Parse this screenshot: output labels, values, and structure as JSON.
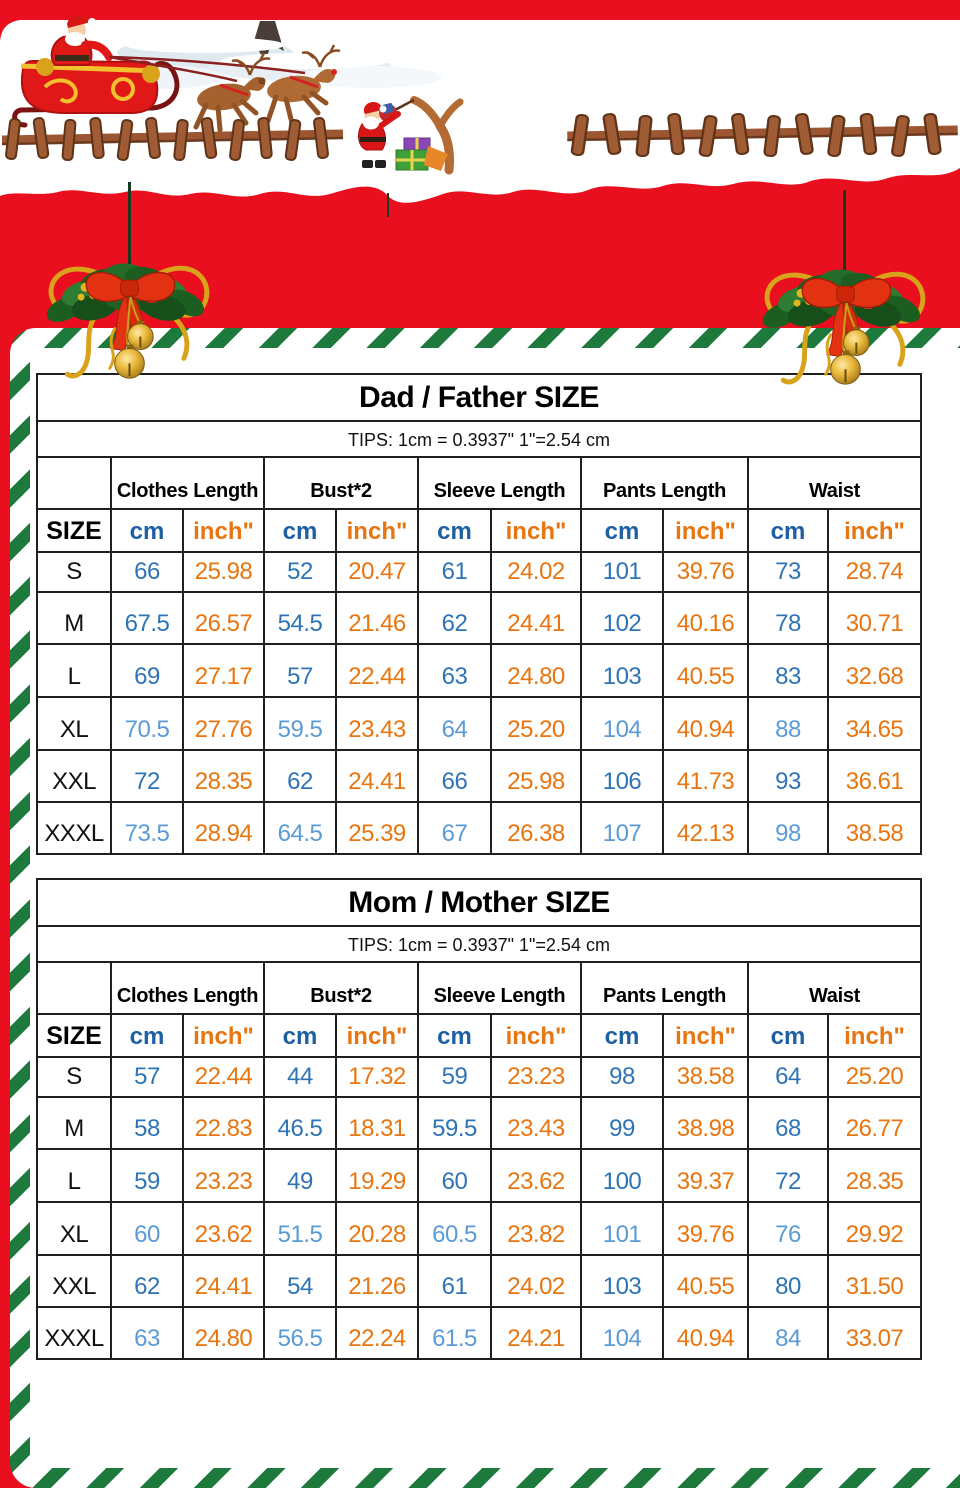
{
  "page": {
    "background_red": "#e90f1e",
    "stripe_green": "#1d7a3c",
    "table_border_color": "#1f1f1f",
    "cm_value_color": "#2e74b5",
    "cm_value_color_light": "#5b9bd5",
    "inch_value_color": "#e8750f",
    "cm_header_color": "#1f5fa3",
    "inch_header_color": "#e8750f"
  },
  "decorations": {
    "top_scene": [
      "santa-sleigh-illustration",
      "snowy-branch-illustration",
      "wooden-fence-illustration",
      "slingshot-santa-illustration"
    ],
    "hanging": [
      "christmas-garland-with-bow-and-bells-left",
      "christmas-garland-with-bow-and-bells-right"
    ]
  },
  "tables": [
    {
      "title": "Dad / Father  SIZE",
      "tips": "TIPS: 1cm = 0.3937\"    1\"=2.54 cm",
      "size_header": "SIZE",
      "unit_headers": {
        "cm": "cm",
        "inch": "inch\""
      },
      "groups": [
        "Clothes Length",
        "Bust*2",
        "Sleeve Length",
        "Pants Length",
        "Waist"
      ],
      "rows": [
        {
          "size": "S",
          "shade": "dark",
          "values": [
            "66",
            "25.98",
            "52",
            "20.47",
            "61",
            "24.02",
            "101",
            "39.76",
            "73",
            "28.74"
          ]
        },
        {
          "size": "M",
          "shade": "dark",
          "values": [
            "67.5",
            "26.57",
            "54.5",
            "21.46",
            "62",
            "24.41",
            "102",
            "40.16",
            "78",
            "30.71"
          ]
        },
        {
          "size": "L",
          "shade": "dark",
          "values": [
            "69",
            "27.17",
            "57",
            "22.44",
            "63",
            "24.80",
            "103",
            "40.55",
            "83",
            "32.68"
          ]
        },
        {
          "size": "XL",
          "shade": "light",
          "values": [
            "70.5",
            "27.76",
            "59.5",
            "23.43",
            "64",
            "25.20",
            "104",
            "40.94",
            "88",
            "34.65"
          ]
        },
        {
          "size": "XXL",
          "shade": "dark",
          "values": [
            "72",
            "28.35",
            "62",
            "24.41",
            "66",
            "25.98",
            "106",
            "41.73",
            "93",
            "36.61"
          ]
        },
        {
          "size": "XXXL",
          "shade": "light",
          "values": [
            "73.5",
            "28.94",
            "64.5",
            "25.39",
            "67",
            "26.38",
            "107",
            "42.13",
            "98",
            "38.58"
          ]
        }
      ]
    },
    {
      "title": "Mom / Mother SIZE",
      "tips": "TIPS: 1cm = 0.3937\"    1\"=2.54 cm",
      "size_header": "SIZE",
      "unit_headers": {
        "cm": "cm",
        "inch": "inch\""
      },
      "groups": [
        "Clothes Length",
        "Bust*2",
        "Sleeve Length",
        "Pants Length",
        "Waist"
      ],
      "rows": [
        {
          "size": "S",
          "shade": "dark",
          "values": [
            "57",
            "22.44",
            "44",
            "17.32",
            "59",
            "23.23",
            "98",
            "38.58",
            "64",
            "25.20"
          ]
        },
        {
          "size": "M",
          "shade": "dark",
          "values": [
            "58",
            "22.83",
            "46.5",
            "18.31",
            "59.5",
            "23.43",
            "99",
            "38.98",
            "68",
            "26.77"
          ]
        },
        {
          "size": "L",
          "shade": "dark",
          "values": [
            "59",
            "23.23",
            "49",
            "19.29",
            "60",
            "23.62",
            "100",
            "39.37",
            "72",
            "28.35"
          ]
        },
        {
          "size": "XL",
          "shade": "light",
          "values": [
            "60",
            "23.62",
            "51.5",
            "20.28",
            "60.5",
            "23.82",
            "101",
            "39.76",
            "76",
            "29.92"
          ]
        },
        {
          "size": "XXL",
          "shade": "dark",
          "values": [
            "62",
            "24.41",
            "54",
            "21.26",
            "61",
            "24.02",
            "103",
            "40.55",
            "80",
            "31.50"
          ]
        },
        {
          "size": "XXXL",
          "shade": "light",
          "values": [
            "63",
            "24.80",
            "56.5",
            "22.24",
            "61.5",
            "24.21",
            "104",
            "40.94",
            "84",
            "33.07"
          ]
        }
      ]
    }
  ]
}
